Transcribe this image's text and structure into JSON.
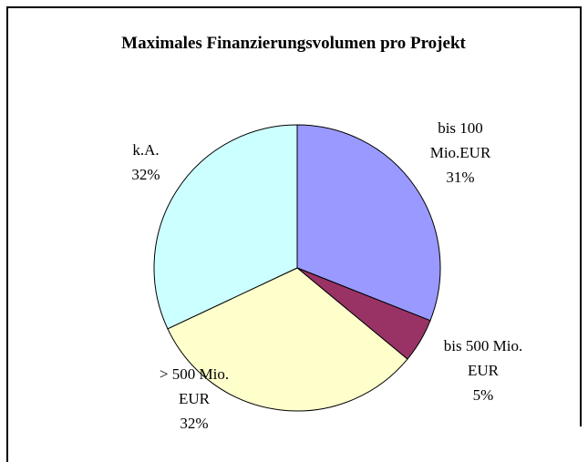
{
  "chart_data": {
    "type": "pie",
    "title": "Maximales Finanzierungsvolumen pro Projekt",
    "categories": [
      "bis 100\nMio.EUR",
      "bis 500 Mio.\nEUR",
      "> 500 Mio.\nEUR",
      "k.A."
    ],
    "values": [
      31,
      5,
      32,
      32
    ],
    "value_labels": [
      "31%",
      "5%",
      "32%",
      "32%"
    ],
    "colors": [
      "#9999ff",
      "#993366",
      "#ffffcc",
      "#ccffff"
    ]
  }
}
